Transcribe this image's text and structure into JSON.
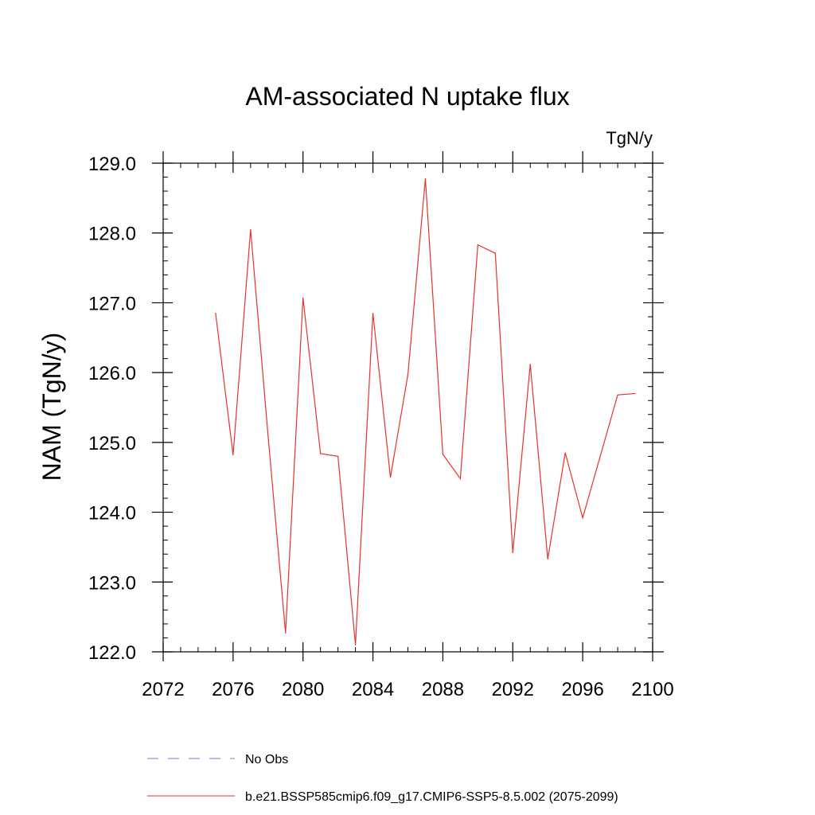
{
  "chart_data": {
    "type": "line",
    "title": "AM-associated N uptake flux",
    "units": "TgN/y",
    "xlabel": "",
    "ylabel": "NAM  (TgN/y)",
    "xlim": [
      2072,
      2100
    ],
    "ylim": [
      122.0,
      129.0
    ],
    "x_ticks": [
      2072,
      2076,
      2080,
      2084,
      2088,
      2092,
      2096,
      2100
    ],
    "x_tick_labels": [
      "2072",
      "2076",
      "2080",
      "2084",
      "2088",
      "2092",
      "2096",
      "2100"
    ],
    "y_ticks": [
      122.0,
      123.0,
      124.0,
      125.0,
      126.0,
      127.0,
      128.0,
      129.0
    ],
    "y_tick_labels": [
      "122.0",
      "123.0",
      "124.0",
      "125.0",
      "126.0",
      "127.0",
      "128.0",
      "129.0"
    ],
    "grid": false,
    "legend_position": "bottom",
    "series": [
      {
        "name": "No Obs",
        "style": "dashed",
        "color": "#7b72c9",
        "x": [],
        "values": []
      },
      {
        "name": "b.e21.BSSP585cmip6.f09_g17.CMIP6-SSP5-8.5.002 (2075-2099)",
        "style": "solid",
        "color": "#e8322a",
        "x": [
          2075,
          2076,
          2077,
          2078,
          2079,
          2080,
          2081,
          2082,
          2083,
          2084,
          2085,
          2086,
          2087,
          2088,
          2089,
          2090,
          2091,
          2092,
          2093,
          2094,
          2095,
          2096,
          2097,
          2098,
          2099
        ],
        "values": [
          126.85,
          124.82,
          128.05,
          125.1,
          122.27,
          127.07,
          124.84,
          124.8,
          122.1,
          126.85,
          124.5,
          125.97,
          128.78,
          124.83,
          124.48,
          127.83,
          127.71,
          123.42,
          126.12,
          123.33,
          124.85,
          123.92,
          124.8,
          125.68,
          125.7
        ]
      }
    ]
  }
}
